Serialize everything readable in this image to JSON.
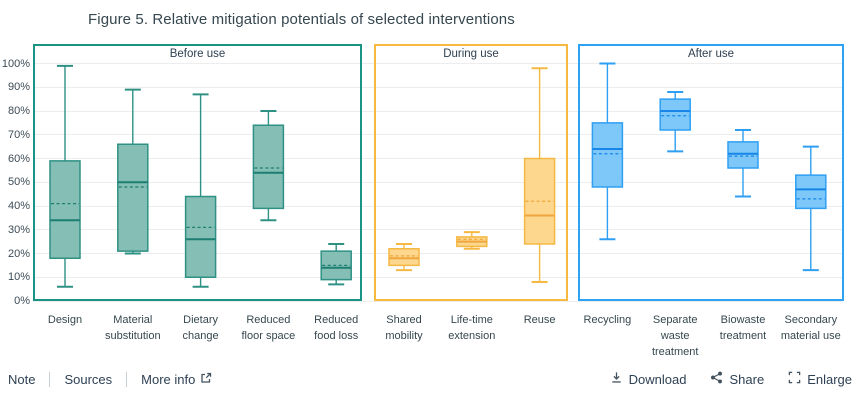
{
  "title": "Figure 5. Relative mitigation potentials of selected interventions",
  "footer": {
    "links": [
      {
        "label": "Note"
      },
      {
        "label": "Sources"
      },
      {
        "label": "More info",
        "icon": "external-link-icon"
      }
    ],
    "actions": [
      {
        "label": "Download",
        "icon": "download-icon"
      },
      {
        "label": "Share",
        "icon": "share-icon"
      },
      {
        "label": "Enlarge",
        "icon": "enlarge-icon"
      }
    ]
  },
  "colors": {
    "title_text": "#36474F",
    "gridline": "#EDEDED",
    "before_use_frame": "#1B9486",
    "during_use_frame": "#F7BA3E",
    "after_use_frame": "#2EA3F6"
  },
  "chart_data": {
    "type": "boxplot",
    "title": "Figure 5. Relative mitigation potentials of selected interventions",
    "ylabel": "",
    "ylim": [
      0,
      100
    ],
    "grid": true,
    "yticks": [
      {
        "value": 0,
        "label": "0%"
      },
      {
        "value": 10,
        "label": "10%"
      },
      {
        "value": 20,
        "label": "20%"
      },
      {
        "value": 30,
        "label": "30%"
      },
      {
        "value": 40,
        "label": "40%"
      },
      {
        "value": 50,
        "label": "50%"
      },
      {
        "value": 60,
        "label": "60%"
      },
      {
        "value": 70,
        "label": "70%"
      },
      {
        "value": 80,
        "label": "80%"
      },
      {
        "value": 90,
        "label": "90%"
      },
      {
        "value": 100,
        "label": "100%"
      }
    ],
    "groups": [
      {
        "label": "Before use",
        "frame_color": "#1B9486",
        "box_fill": "#85BEB5",
        "box_stroke": "#2E9184",
        "line_color": "#1D7F72",
        "items": [
          {
            "label": "Design",
            "label_lines": [
              "Design"
            ],
            "low": 6,
            "q1": 18,
            "median": 34,
            "mean": 41,
            "q3": 59,
            "high": 99
          },
          {
            "label": "Material substitution",
            "label_lines": [
              "Material",
              "substitution"
            ],
            "low": 20,
            "q1": 21,
            "median": 50,
            "mean": 48,
            "q3": 66,
            "high": 89
          },
          {
            "label": "Dietary change",
            "label_lines": [
              "Dietary",
              "change"
            ],
            "low": 6,
            "q1": 10,
            "median": 26,
            "mean": 31,
            "q3": 44,
            "high": 87
          },
          {
            "label": "Reduced floor space",
            "label_lines": [
              "Reduced",
              "floor space"
            ],
            "low": 34,
            "q1": 39,
            "median": 54,
            "mean": 56,
            "q3": 74,
            "high": 80
          },
          {
            "label": "Reduced food loss",
            "label_lines": [
              "Reduced",
              "food loss"
            ],
            "low": 7,
            "q1": 9,
            "median": 14,
            "mean": 15,
            "q3": 21,
            "high": 24
          }
        ]
      },
      {
        "label": "During use",
        "frame_color": "#F7BA3E",
        "box_fill": "#FCD78D",
        "box_stroke": "#F5B943",
        "line_color": "#F0A63C",
        "items": [
          {
            "label": "Shared mobility",
            "label_lines": [
              "Shared",
              "mobility"
            ],
            "low": 13,
            "q1": 15,
            "median": 18,
            "mean": 19,
            "q3": 22,
            "high": 24
          },
          {
            "label": "Life-time extension",
            "label_lines": [
              "Life-time",
              "extension"
            ],
            "low": 22,
            "q1": 23,
            "median": 25,
            "mean": 26,
            "q3": 27,
            "high": 29
          },
          {
            "label": "Reuse",
            "label_lines": [
              "Reuse"
            ],
            "low": 8,
            "q1": 24,
            "median": 36,
            "mean": 42,
            "q3": 60,
            "high": 98
          }
        ]
      },
      {
        "label": "After use",
        "frame_color": "#2EA3F6",
        "box_fill": "#7EC8F9",
        "box_stroke": "#2E9FF3",
        "line_color": "#1686E8",
        "items": [
          {
            "label": "Recycling",
            "label_lines": [
              "Recycling"
            ],
            "low": 26,
            "q1": 48,
            "median": 64,
            "mean": 62,
            "q3": 75,
            "high": 100
          },
          {
            "label": "Separate waste treatment",
            "label_lines": [
              "Separate",
              "waste",
              "treatment"
            ],
            "low": 63,
            "q1": 72,
            "median": 80,
            "mean": 78,
            "q3": 85,
            "high": 88
          },
          {
            "label": "Biowaste treatment",
            "label_lines": [
              "Biowaste",
              "treatment"
            ],
            "low": 44,
            "q1": 56,
            "median": 62,
            "mean": 61,
            "q3": 67,
            "high": 72
          },
          {
            "label": "Secondary material use",
            "label_lines": [
              "Secondary",
              "material use"
            ],
            "low": 13,
            "q1": 39,
            "median": 47,
            "mean": 43,
            "q3": 53,
            "high": 65
          }
        ]
      }
    ]
  }
}
